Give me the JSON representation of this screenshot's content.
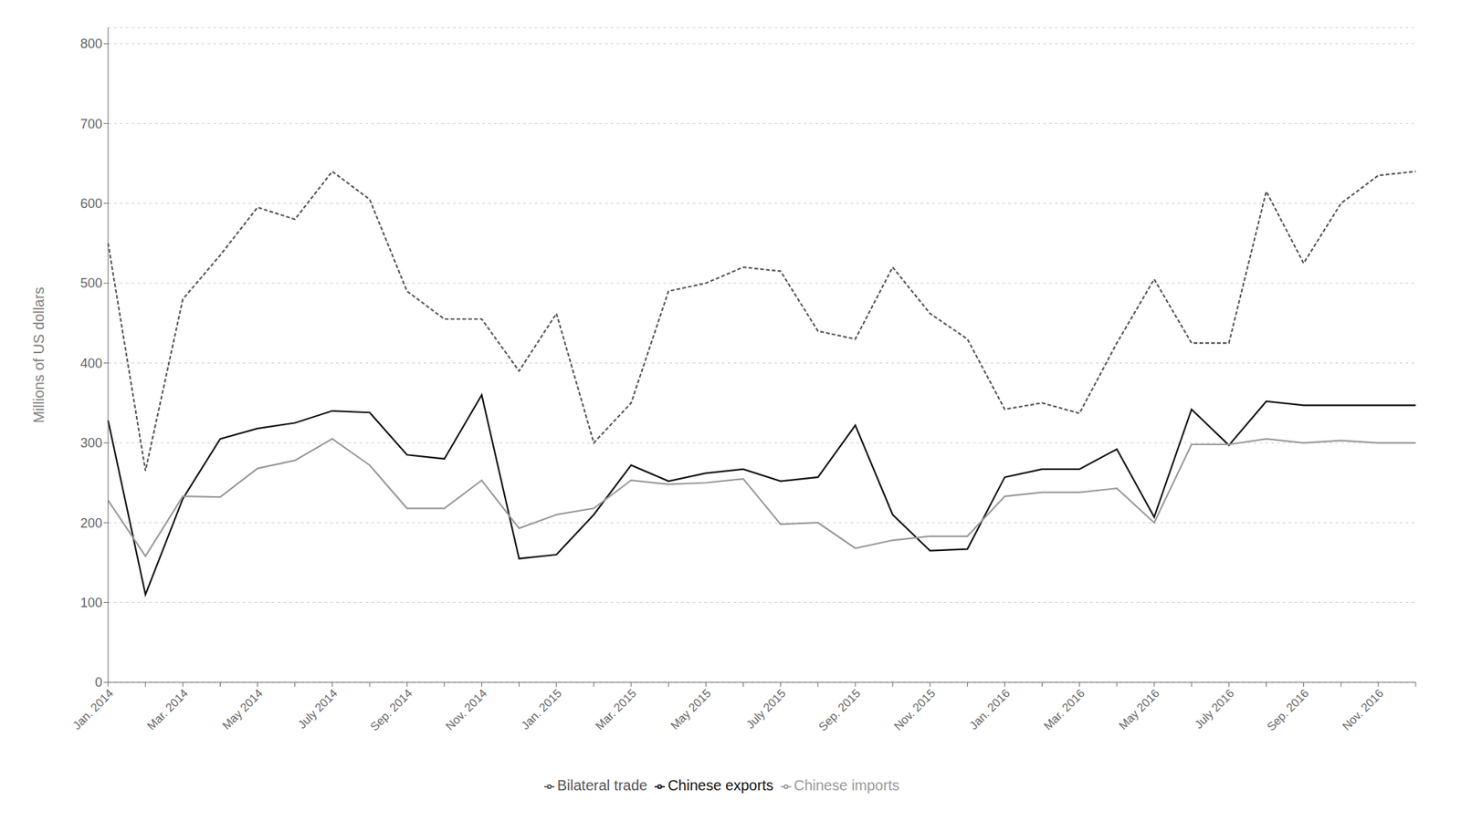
{
  "chart_data": {
    "type": "line",
    "y_label": "Millions of US dollars",
    "categories": [
      "Jan. 2014",
      null,
      "Mar. 2014",
      null,
      "May 2014",
      null,
      "July 2014",
      null,
      "Sep. 2014",
      null,
      "Nov. 2014",
      null,
      "Jan. 2015",
      null,
      "Mar. 2015",
      null,
      "May 2015",
      null,
      "July 2015",
      null,
      "Sep. 2015",
      null,
      "Nov. 2015",
      null,
      "Jan. 2016",
      null,
      "Mar. 2016",
      null,
      "May 2016",
      null,
      "July 2016",
      null,
      "Sep. 2016",
      null,
      "Nov. 2016",
      null
    ],
    "series": [
      {
        "name": "Bilateral trade",
        "color": "#555555",
        "line_style": "dashed",
        "values": [
          550,
          265,
          480,
          535,
          595,
          580,
          640,
          605,
          490,
          455,
          455,
          390,
          462,
          300,
          350,
          490,
          500,
          520,
          515,
          440,
          430,
          520,
          462,
          430,
          342,
          350,
          337,
          425,
          505,
          425,
          425,
          615,
          525,
          600,
          635,
          640
        ]
      },
      {
        "name": "Chinese exports",
        "color": "#111111",
        "line_style": "solid",
        "values": [
          328,
          110,
          230,
          305,
          318,
          325,
          340,
          338,
          285,
          280,
          360,
          155,
          160,
          210,
          272,
          252,
          262,
          267,
          252,
          257,
          322,
          210,
          165,
          167,
          257,
          267,
          267,
          292,
          207,
          342,
          297,
          352,
          347,
          347,
          347,
          347
        ]
      },
      {
        "name": "Chinese imports",
        "color": "#999999",
        "line_style": "solid",
        "values": [
          228,
          158,
          233,
          232,
          268,
          278,
          305,
          272,
          218,
          218,
          253,
          193,
          210,
          218,
          253,
          248,
          250,
          255,
          198,
          200,
          168,
          178,
          183,
          183,
          233,
          238,
          238,
          243,
          200,
          298,
          298,
          305,
          300,
          303,
          300,
          300
        ]
      }
    ],
    "ylim": [
      0,
      820
    ],
    "yticks": [
      0,
      100,
      200,
      300,
      400,
      500,
      600,
      700,
      800
    ],
    "grid": true,
    "legend": "bottom"
  }
}
